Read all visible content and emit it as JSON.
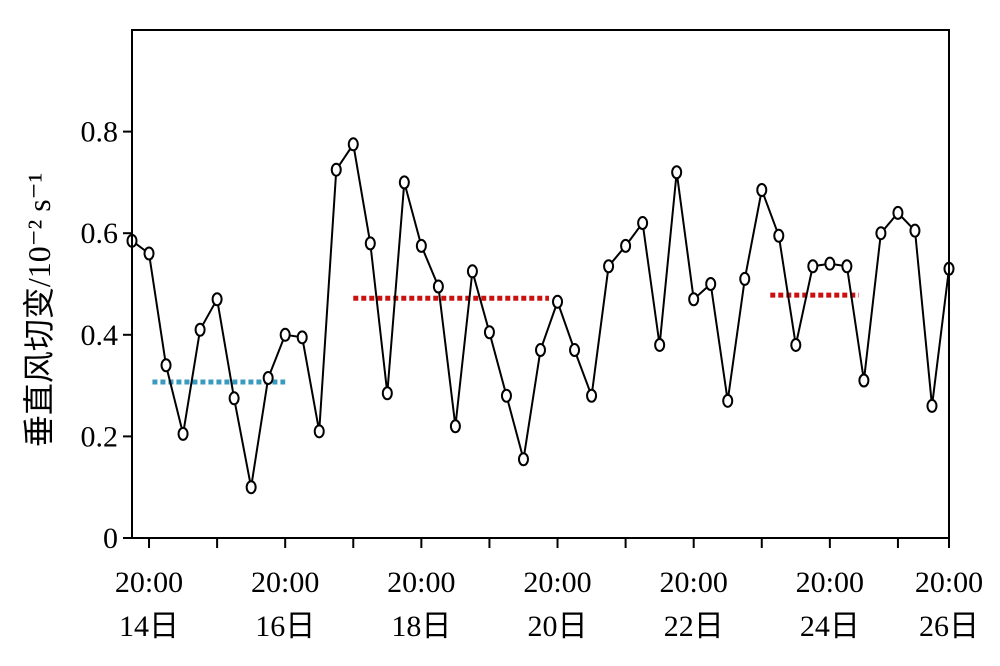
{
  "chart_data": {
    "type": "line",
    "title": "",
    "xlabel": "",
    "ylabel": "垂直风切变/10⁻² s⁻¹",
    "ylim": [
      0,
      1.0
    ],
    "y_ticks": [
      {
        "value": 0,
        "label": "0"
      },
      {
        "value": 0.2,
        "label": "0.2"
      },
      {
        "value": 0.4,
        "label": "0.4"
      },
      {
        "value": 0.6,
        "label": "0.6"
      },
      {
        "value": 0.8,
        "label": "0.8"
      }
    ],
    "xlim": [
      0,
      48
    ],
    "x_unit": "12-hour intervals starting 14日 08:00",
    "x_ticks_major": [
      {
        "value": 1,
        "time": "20:00",
        "day": "14日"
      },
      {
        "value": 9,
        "time": "20:00",
        "day": "16日"
      },
      {
        "value": 17,
        "time": "20:00",
        "day": "18日"
      },
      {
        "value": 25,
        "time": "20:00",
        "day": "20日"
      },
      {
        "value": 33,
        "time": "20:00",
        "day": "22日"
      },
      {
        "value": 41,
        "time": "20:00",
        "day": "24日"
      },
      {
        "value": 48,
        "time": "20:00",
        "day": "26日"
      }
    ],
    "x_ticks_minor": [
      5,
      13,
      21,
      29,
      37,
      45
    ],
    "series": [
      {
        "color": "#000000",
        "x": [
          0,
          1,
          2,
          3,
          4,
          5,
          6,
          7,
          8,
          9,
          10,
          11,
          12,
          13,
          14,
          15,
          16,
          17,
          18,
          19,
          20,
          21,
          22,
          23,
          24,
          25,
          26,
          27,
          28,
          29,
          30,
          31,
          32,
          33,
          34,
          35,
          36,
          37,
          38,
          39,
          40,
          41,
          42,
          43,
          44,
          45,
          46,
          47,
          48
        ],
        "y": [
          0.585,
          0.56,
          0.34,
          0.205,
          0.41,
          0.47,
          0.275,
          0.1,
          0.315,
          0.4,
          0.395,
          0.21,
          0.725,
          0.775,
          0.58,
          0.285,
          0.7,
          0.575,
          0.495,
          0.22,
          0.525,
          0.405,
          0.28,
          0.155,
          0.37,
          0.465,
          0.37,
          0.28,
          0.535,
          0.575,
          0.62,
          0.38,
          0.72,
          0.47,
          0.5,
          0.27,
          0.51,
          0.685,
          0.595,
          0.38,
          0.535,
          0.54,
          0.535,
          0.31,
          0.6,
          0.64,
          0.605,
          0.26,
          0.53
        ]
      }
    ],
    "mean_lines": [
      {
        "color": "#3a9ac0",
        "x_start": 1.2,
        "x_end": 9.0,
        "y": 0.307
      },
      {
        "color": "#cc1010",
        "x_start": 13.0,
        "x_end": 24.5,
        "y": 0.472
      },
      {
        "color": "#cc1010",
        "x_start": 37.5,
        "x_end": 42.7,
        "y": 0.478
      }
    ]
  }
}
